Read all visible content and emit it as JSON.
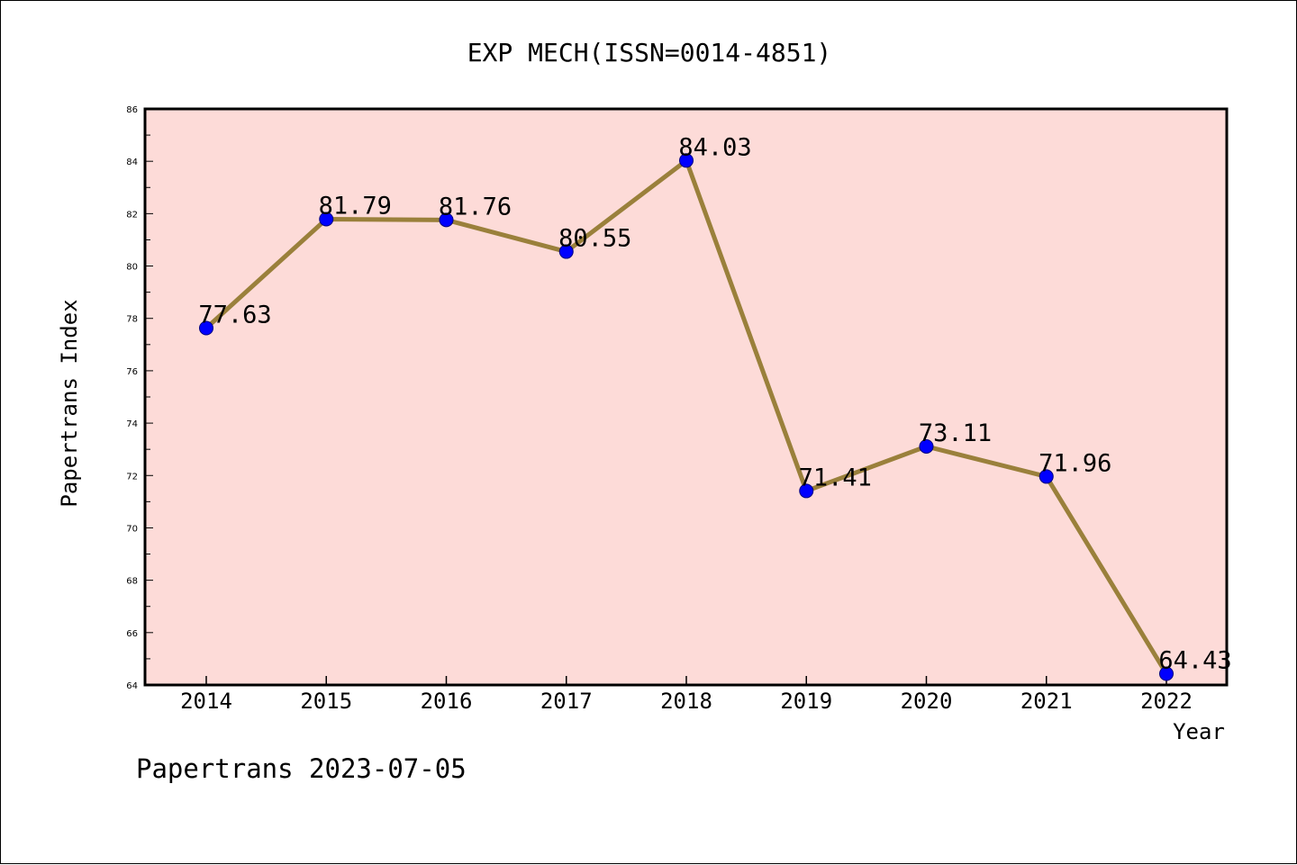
{
  "footer": {
    "text": "Papertrans 2023-07-05"
  },
  "colors": {
    "plot_background": "#fddbd8",
    "line": "#9a803b",
    "marker_fill": "#0000ff",
    "marker_edge": "#000080",
    "frame": "#000000"
  },
  "chart_data": {
    "type": "line",
    "title": "EXP MECH(ISSN=0014-4851)",
    "xlabel": "Year",
    "ylabel": "Papertrans Index",
    "categories": [
      "2014",
      "2015",
      "2016",
      "2017",
      "2018",
      "2019",
      "2020",
      "2021",
      "2022"
    ],
    "series": [
      {
        "values": [
          77.63,
          81.79,
          81.76,
          80.55,
          84.03,
          71.41,
          73.11,
          71.96,
          64.43
        ],
        "data_labels": [
          "77.63",
          "81.79",
          "81.76",
          "80.55",
          "84.03",
          "71.41",
          "73.11",
          "71.96",
          "64.43"
        ]
      }
    ],
    "ylim": [
      64,
      86
    ],
    "y_ticks": [
      64,
      66,
      68,
      70,
      72,
      74,
      76,
      78,
      80,
      82,
      84,
      86
    ],
    "grid": false,
    "legend": "none"
  }
}
